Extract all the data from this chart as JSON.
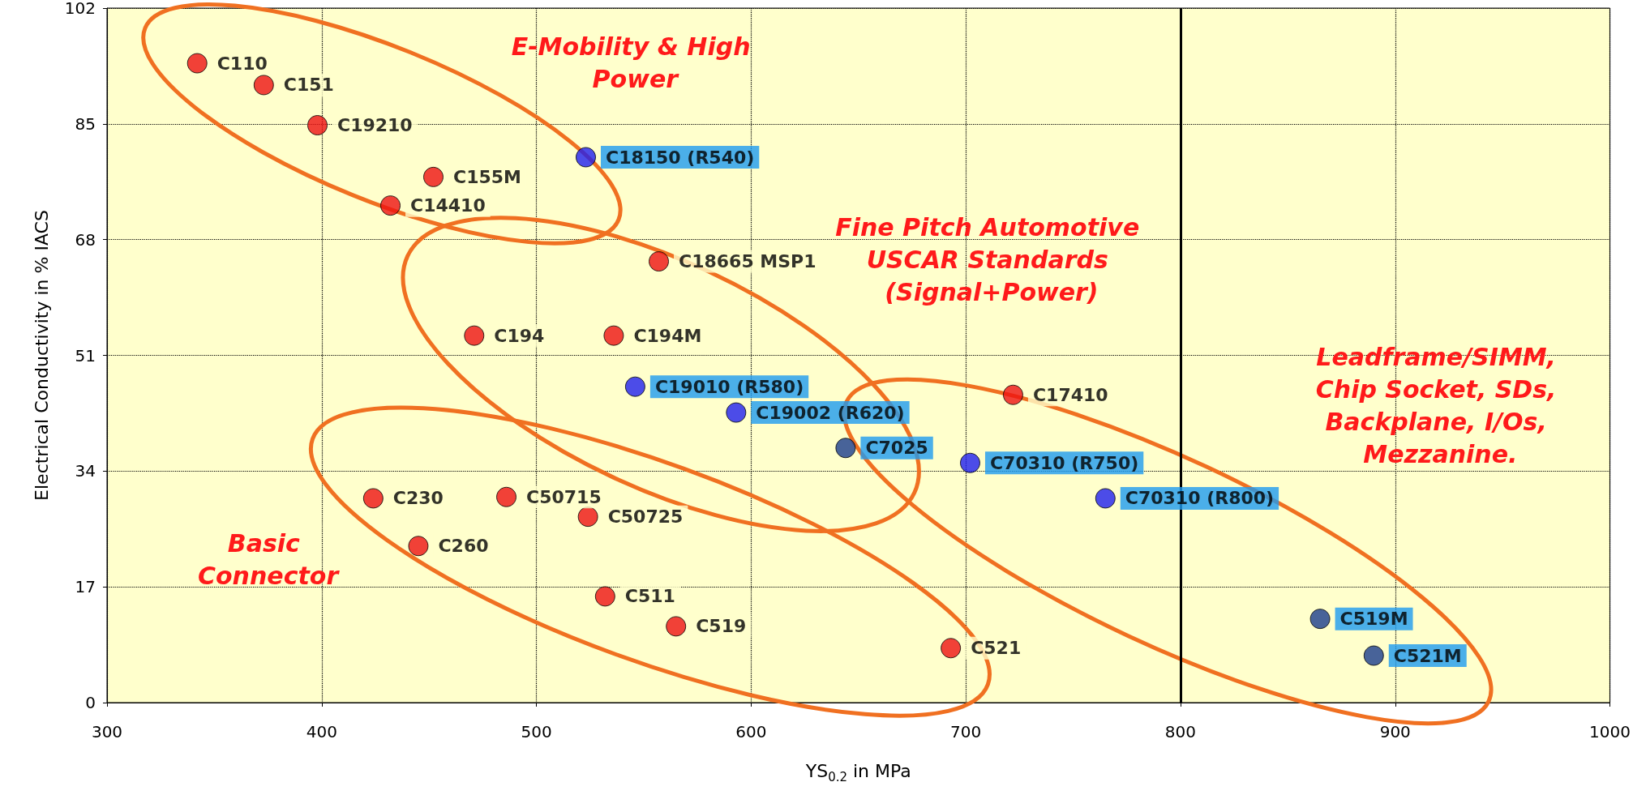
{
  "chart_data": {
    "type": "scatter",
    "xlabel": "YS$_{0.2}$ in MPa",
    "ylabel": "Electrical Conductivity in % IACS",
    "xlim": [
      300,
      1000
    ],
    "xticks": [
      300,
      400,
      500,
      600,
      700,
      800,
      900,
      1000
    ],
    "ylim": [
      0,
      102
    ],
    "yticks": [
      0,
      17,
      34,
      51,
      68,
      85,
      102
    ],
    "grid": true,
    "marker": "circle",
    "series": [
      {
        "color": "#ee1111",
        "x": [
          342,
          373,
          398,
          452,
          432,
          557,
          471,
          536,
          722,
          424,
          486,
          524,
          445,
          532,
          565,
          693
        ],
        "values": [
          93.9,
          90.7,
          84.8,
          77.2,
          73.0,
          64.8,
          53.9,
          53.9,
          45.2,
          30.0,
          30.2,
          27.3,
          23.0,
          15.6,
          11.2,
          8.0
        ],
        "value_labels": [
          "C110",
          "C151",
          "C19210",
          "C155M",
          "C14410",
          "C18665 MSP1",
          "C194",
          "C194M",
          "C17410",
          "C230",
          "C50715",
          "C50725",
          "C260",
          "C511",
          "C519",
          "C521"
        ]
      },
      {
        "color": "#1f1fef",
        "x": [
          523,
          546,
          593,
          702,
          765
        ],
        "values": [
          80.1,
          46.4,
          42.6,
          35.2,
          30.0
        ],
        "value_labels": [
          "C18150 (R540)",
          "C19010 (R580)",
          "C19002 (R620)",
          "C70310 (R750)",
          "C70310 (R800)"
        ]
      },
      {
        "color": "#1a3c8c",
        "x": [
          644,
          865,
          890
        ],
        "values": [
          37.4,
          12.3,
          6.9
        ],
        "value_labels": [
          "C7025",
          "C519M",
          "C521M"
        ]
      }
    ],
    "ref_lines": [
      {
        "axis": "x",
        "value": 800,
        "color": "#000000"
      }
    ],
    "annotations": [
      "E-Mobility & High Power",
      "Fine Pitch Automotive USCAR Standards (Signal+Power)",
      "Leadframe/SIMM, Chip Socket, SDs, Backplane, I/Os, Mezzanine.",
      "Basic Connector"
    ]
  }
}
